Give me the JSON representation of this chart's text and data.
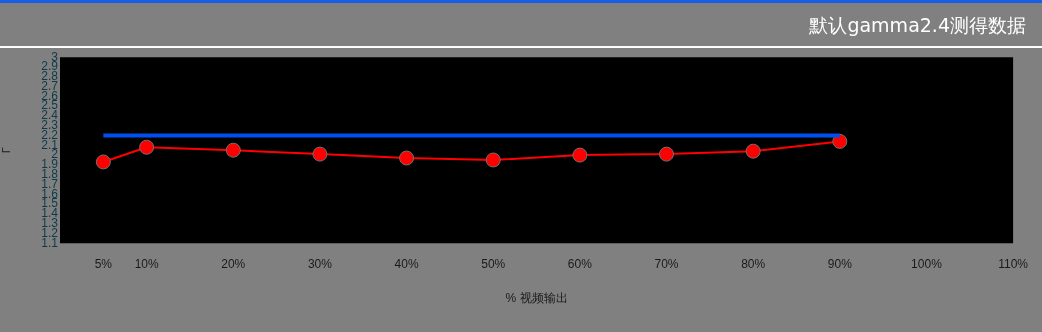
{
  "chart_data": {
    "type": "line",
    "title": "默认gamma2.4测得数据",
    "xlabel": "% 视频输出",
    "ylabel": "Γ",
    "xlim": [
      0,
      110
    ],
    "xticks": [
      {
        "value": 5,
        "label": "5%"
      },
      {
        "value": 10,
        "label": "10%"
      },
      {
        "value": 20,
        "label": "20%"
      },
      {
        "value": 30,
        "label": "30%"
      },
      {
        "value": 40,
        "label": "40%"
      },
      {
        "value": 50,
        "label": "50%"
      },
      {
        "value": 60,
        "label": "60%"
      },
      {
        "value": 70,
        "label": "70%"
      },
      {
        "value": 80,
        "label": "80%"
      },
      {
        "value": 90,
        "label": "90%"
      },
      {
        "value": 100,
        "label": "100%"
      },
      {
        "value": 110,
        "label": "110%"
      }
    ],
    "ylim": [
      1.1,
      3
    ],
    "yticks": [
      1.1,
      1.2,
      1.3,
      1.4,
      1.5,
      1.6,
      1.7,
      1.8,
      1.9,
      2,
      2.1,
      2.2,
      2.3,
      2.4,
      2.5,
      2.6,
      2.7,
      2.8,
      2.9,
      3
    ],
    "grid": false,
    "legend": false,
    "marker": "circle",
    "series": [
      {
        "color": "#0050f0",
        "x": [
          5,
          90
        ],
        "values": [
          2.2,
          2.2
        ],
        "marker": "none"
      },
      {
        "color": "#ff0000",
        "x": [
          5,
          10,
          20,
          30,
          40,
          50,
          60,
          70,
          80,
          90
        ],
        "values": [
          1.93,
          2.08,
          2.05,
          2.01,
          1.97,
          1.95,
          2.0,
          2.01,
          2.04,
          2.14
        ]
      }
    ]
  }
}
